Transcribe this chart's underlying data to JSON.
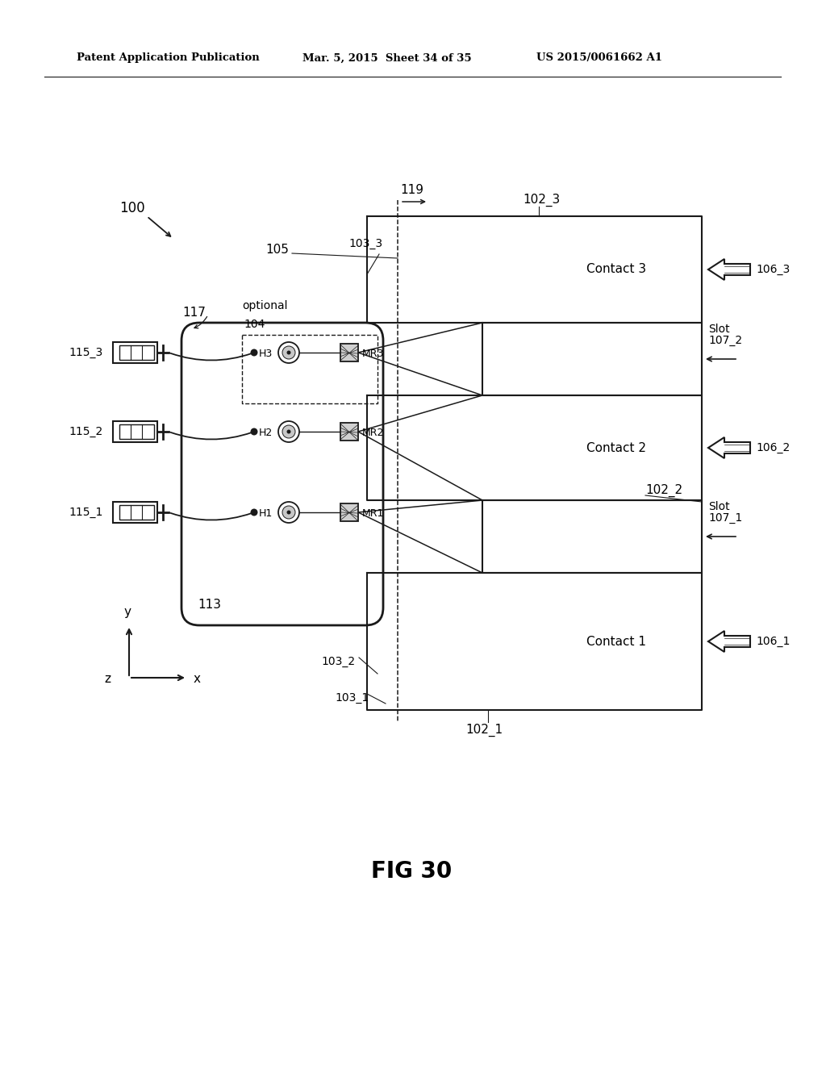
{
  "bg_color": "#ffffff",
  "lc": "#1a1a1a",
  "header_left": "Patent Application Publication",
  "header_mid": "Mar. 5, 2015  Sheet 34 of 35",
  "header_right": "US 2015/0061662 A1",
  "fig_label": "FIG 30",
  "label_100": "100",
  "label_119": "119",
  "label_105": "105",
  "label_117": "117",
  "label_optional": "optional",
  "label_104": "104",
  "label_113": "113",
  "label_102_1": "102_1",
  "label_102_2": "102_2",
  "label_102_3": "102_3",
  "label_103_1": "103_1",
  "label_103_2": "103_2",
  "label_103_3": "103_3",
  "label_106_1": "106_1",
  "label_106_2": "106_2",
  "label_106_3": "106_3",
  "label_Slot_107_1a": "Slot",
  "label_Slot_107_1b": "107_1",
  "label_Slot_107_2a": "Slot",
  "label_Slot_107_2b": "107_2",
  "label_115_1": "115_1",
  "label_115_2": "115_2",
  "label_115_3": "115_3",
  "label_H1": "H1",
  "label_H2": "H2",
  "label_H3": "H3",
  "label_MR1": "MR1",
  "label_MR2": "MR2",
  "label_MR3": "MR3",
  "label_Contact1": "Contact 1",
  "label_Contact2": "Contact 2",
  "label_Contact3": "Contact 3",
  "label_x": "x",
  "label_y": "y",
  "label_z": "z"
}
